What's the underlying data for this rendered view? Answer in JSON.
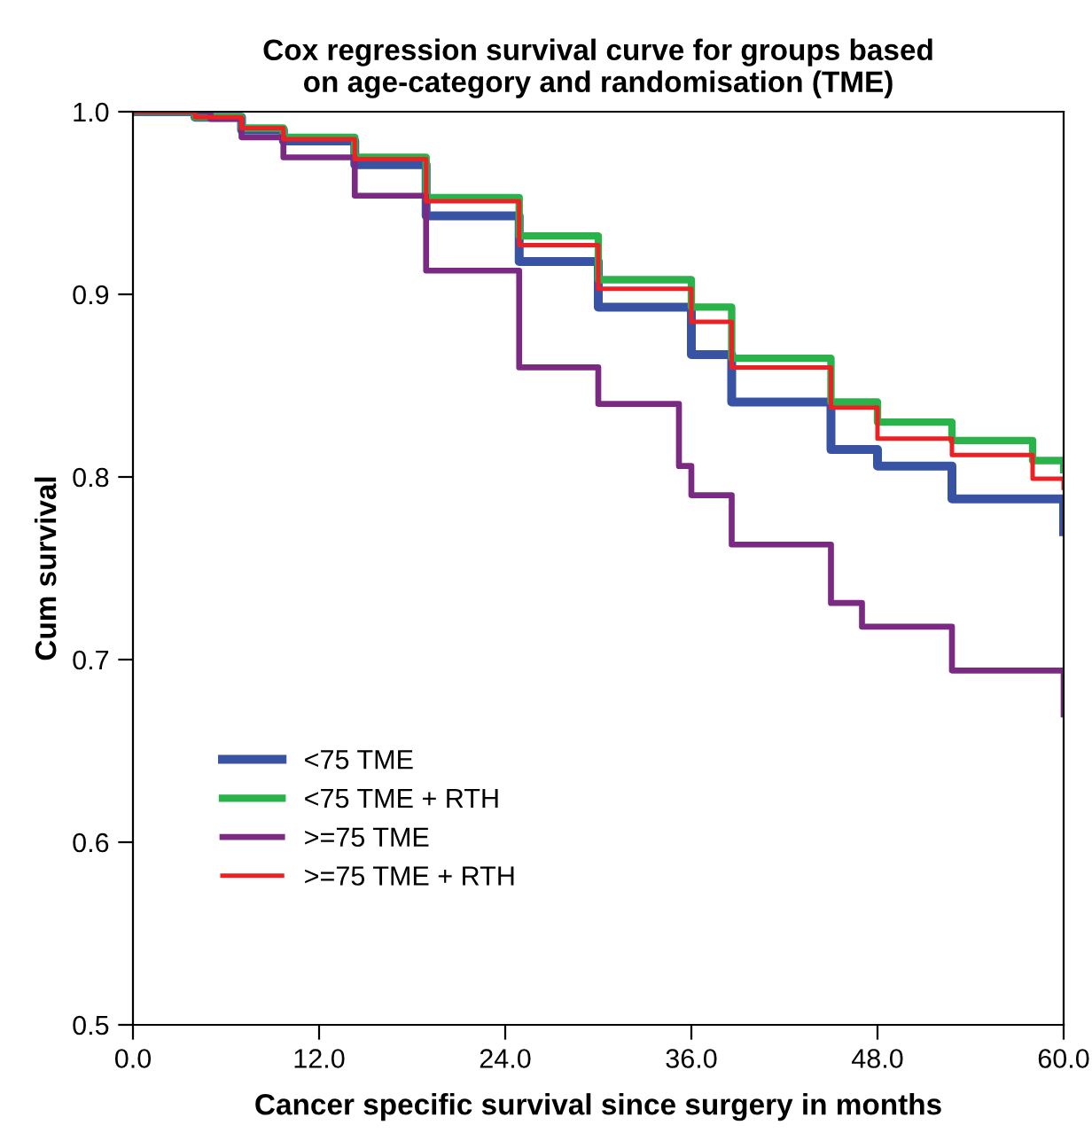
{
  "chart_data": {
    "type": "step",
    "title": "Cox regression survival curve for groups based\non age-category and randomisation (TME)",
    "xlabel": "Cancer specific survival since surgery in months",
    "ylabel": "Cum survival",
    "xlim": [
      0,
      60
    ],
    "ylim": [
      0.5,
      1.0
    ],
    "xticks": [
      {
        "value": 0,
        "label": "0.0"
      },
      {
        "value": 12,
        "label": "12.0"
      },
      {
        "value": 24,
        "label": "24.0"
      },
      {
        "value": 36,
        "label": "36.0"
      },
      {
        "value": 48,
        "label": "48.0"
      },
      {
        "value": 60,
        "label": "60.0"
      }
    ],
    "yticks": [
      0.5,
      0.6,
      0.7,
      0.8,
      0.9,
      {
        "value": 1.0,
        "label": "1.0"
      }
    ],
    "grid": false,
    "legend": "bottom left",
    "line_style": "solid",
    "marker": "none",
    "series": [
      {
        "name": "<75 TME",
        "color": "#3953a4",
        "x": [
          0,
          4,
          7,
          9.7,
          14.3,
          18.9,
          24.9,
          30,
          36,
          38.6,
          45,
          48,
          52.8,
          60
        ],
        "values": [
          1.0,
          0.997,
          0.99,
          0.984,
          0.971,
          0.943,
          0.918,
          0.893,
          0.867,
          0.841,
          0.815,
          0.806,
          0.788,
          0.77
        ]
      },
      {
        "name": "<75 TME + RTH",
        "color": "#2ab34a",
        "x": [
          0,
          4,
          7,
          9.7,
          14.3,
          18.9,
          24.9,
          30,
          36,
          38.6,
          45,
          48,
          52.8,
          58,
          60
        ],
        "values": [
          1.0,
          0.997,
          0.991,
          0.986,
          0.975,
          0.953,
          0.932,
          0.908,
          0.893,
          0.865,
          0.841,
          0.83,
          0.82,
          0.809,
          0.804
        ]
      },
      {
        "name": ">=75 TME",
        "color": "#7b2a83",
        "x": [
          0,
          5,
          7,
          9.7,
          14.3,
          18.9,
          24.9,
          30,
          35.2,
          36,
          38.6,
          45,
          47,
          52.8,
          60
        ],
        "values": [
          1.0,
          0.996,
          0.986,
          0.975,
          0.954,
          0.913,
          0.86,
          0.84,
          0.806,
          0.79,
          0.763,
          0.731,
          0.718,
          0.694,
          0.67
        ]
      },
      {
        "name": ">=75 TME + RTH",
        "color": "#ed2024",
        "x": [
          0,
          4,
          7,
          9.7,
          14.3,
          18.9,
          24.9,
          30,
          36,
          38.6,
          45,
          48,
          52.8,
          58,
          60
        ],
        "values": [
          1.0,
          0.997,
          0.991,
          0.985,
          0.974,
          0.951,
          0.927,
          0.903,
          0.885,
          0.86,
          0.838,
          0.821,
          0.812,
          0.799,
          0.794
        ]
      }
    ]
  }
}
